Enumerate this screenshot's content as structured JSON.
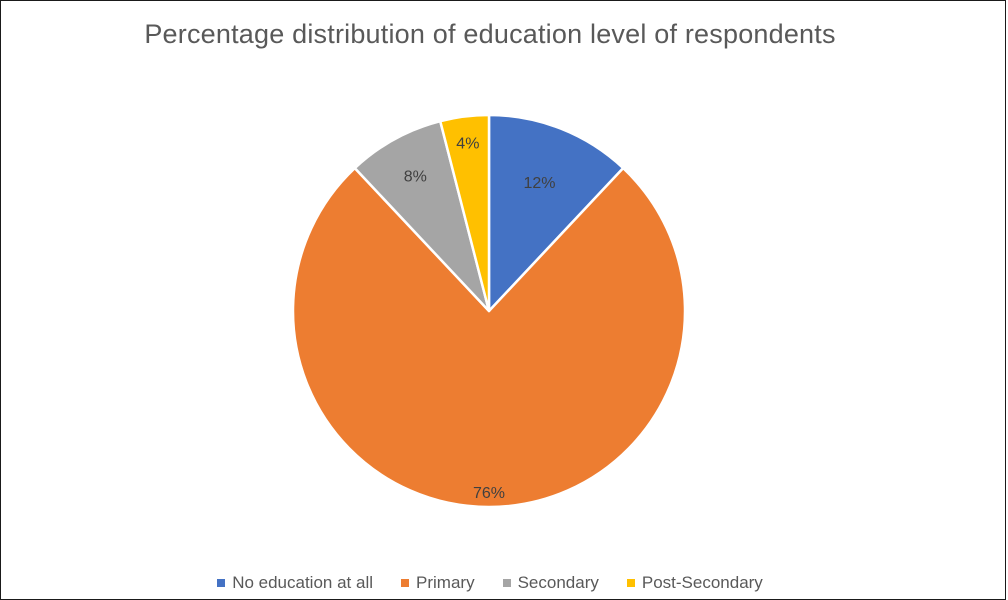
{
  "chart_data": {
    "type": "pie",
    "title": "Percentage distribution of education level of respondents",
    "categories": [
      "No education at all",
      "Primary",
      "Secondary",
      "Post-Secondary"
    ],
    "values": [
      12,
      76,
      8,
      4
    ],
    "data_labels": [
      "12%",
      "76%",
      "8%",
      "4%"
    ],
    "colors": [
      "#4472C4",
      "#ED7D31",
      "#A5A5A5",
      "#FFC000"
    ],
    "legend_position": "bottom",
    "start_angle_deg": 0,
    "direction": "clockwise"
  }
}
